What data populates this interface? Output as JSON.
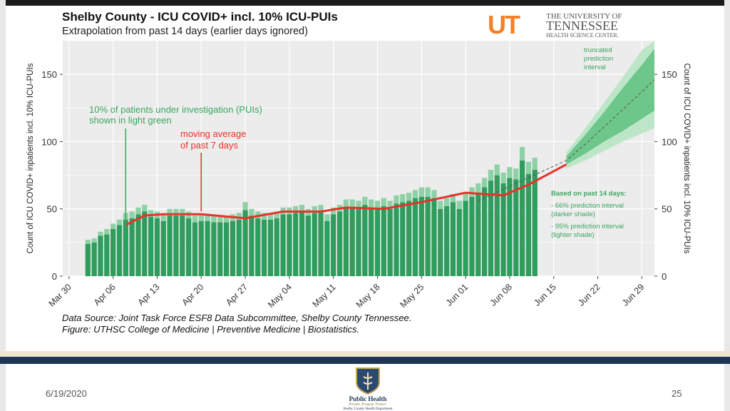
{
  "slide": {
    "title": "Shelby County - ICU COVID+ incl. 10% ICU-PUIs",
    "subtitle": "Extrapolation from past 14 days (earlier days ignored)",
    "source_line1": "Data Source: Joint Task Force ESF8 Data Subcommittee, Shelby County Tennessee.",
    "source_line2": "Figure: UTHSC College of Medicine | Preventive Medicine | Biostatistics.",
    "date": "6/19/2020",
    "page_number": "25"
  },
  "logo": {
    "line1": "THE UNIVERSITY OF",
    "line2": "TENNESSEE",
    "line3": "HEALTH SCIENCE CENTER.",
    "monogram": "UT",
    "color": "#f58025"
  },
  "footer_logo": {
    "line1": "Public Health",
    "line2": "Prevent. Promote. Protect.",
    "line3": "Shelby County Health Department"
  },
  "chart_data": {
    "type": "bar",
    "ylabel": "Count of ICU COVID+ inpatients incl. 10% ICU-PUIs",
    "y2label": "Count of ICU COVID+ inpatients incl. 10% ICU-PUIs",
    "ylim": [
      0,
      175
    ],
    "yticks": [
      0,
      50,
      100,
      150
    ],
    "xlim_dates": [
      "2020-03-29",
      "2020-07-01"
    ],
    "x_ticks": [
      {
        "date": "2020-03-30",
        "label": "Mar 30"
      },
      {
        "date": "2020-04-06",
        "label": "Apr 06"
      },
      {
        "date": "2020-04-13",
        "label": "Apr 13"
      },
      {
        "date": "2020-04-20",
        "label": "Apr 20"
      },
      {
        "date": "2020-04-27",
        "label": "Apr 27"
      },
      {
        "date": "2020-05-04",
        "label": "May 04"
      },
      {
        "date": "2020-05-11",
        "label": "May 11"
      },
      {
        "date": "2020-05-18",
        "label": "May 18"
      },
      {
        "date": "2020-05-25",
        "label": "May 25"
      },
      {
        "date": "2020-06-01",
        "label": "Jun 01"
      },
      {
        "date": "2020-06-08",
        "label": "Jun 08"
      },
      {
        "date": "2020-06-15",
        "label": "Jun 15"
      },
      {
        "date": "2020-06-22",
        "label": "Jun 22"
      },
      {
        "date": "2020-06-29",
        "label": "Jun 29"
      }
    ],
    "grid": true,
    "bars_start_date": "2020-04-02",
    "totals": [
      27,
      28,
      33,
      35,
      39,
      42,
      47,
      48,
      51,
      53,
      49,
      48,
      46,
      50,
      50,
      50,
      48,
      45,
      46,
      46,
      45,
      44,
      44,
      46,
      47,
      55,
      50,
      48,
      47,
      47,
      48,
      51,
      51,
      52,
      53,
      50,
      52,
      53,
      46,
      51,
      53,
      57,
      57,
      56,
      59,
      57,
      56,
      58,
      56,
      60,
      61,
      62,
      64,
      66,
      66,
      64,
      56,
      58,
      61,
      56,
      62,
      66,
      69,
      73,
      79,
      83,
      77,
      81,
      80,
      96,
      85,
      88
    ],
    "pui_values": [
      3,
      3,
      3,
      4,
      4,
      4,
      5,
      5,
      5,
      5,
      5,
      5,
      5,
      5,
      5,
      5,
      5,
      5,
      5,
      5,
      5,
      4,
      4,
      5,
      5,
      6,
      5,
      5,
      5,
      5,
      5,
      5,
      5,
      5,
      5,
      5,
      5,
      5,
      5,
      5,
      5,
      6,
      6,
      6,
      6,
      6,
      6,
      6,
      6,
      6,
      6,
      6,
      6,
      7,
      7,
      6,
      6,
      6,
      6,
      6,
      6,
      7,
      7,
      7,
      8,
      8,
      8,
      8,
      8,
      10,
      9,
      9
    ],
    "moving_average_7d": [
      {
        "date": "2020-04-08",
        "value": 38
      },
      {
        "date": "2020-04-11",
        "value": 45
      },
      {
        "date": "2020-04-14",
        "value": 46
      },
      {
        "date": "2020-04-20",
        "value": 46
      },
      {
        "date": "2020-04-27",
        "value": 43
      },
      {
        "date": "2020-05-03",
        "value": 48
      },
      {
        "date": "2020-05-09",
        "value": 48
      },
      {
        "date": "2020-05-13",
        "value": 51
      },
      {
        "date": "2020-05-19",
        "value": 50
      },
      {
        "date": "2020-05-25",
        "value": 55
      },
      {
        "date": "2020-06-01",
        "value": 62
      },
      {
        "date": "2020-06-07",
        "value": 60
      },
      {
        "date": "2020-06-11",
        "value": 68
      },
      {
        "date": "2020-06-15",
        "value": 78
      },
      {
        "date": "2020-06-17",
        "value": 83
      }
    ],
    "prediction": {
      "dates": [
        "2020-06-17",
        "2020-06-20",
        "2020-06-23",
        "2020-06-26",
        "2020-06-29",
        "2020-07-01"
      ],
      "mean": [
        86,
        98,
        111,
        124,
        137,
        146
      ],
      "pi66": [
        [
          83,
          89
        ],
        [
          91,
          105
        ],
        [
          100,
          122
        ],
        [
          108,
          140
        ],
        [
          117,
          157
        ],
        [
          123,
          169
        ]
      ],
      "pi95": [
        [
          80,
          92
        ],
        [
          86,
          110
        ],
        [
          93,
          129
        ],
        [
          100,
          148
        ],
        [
          106,
          168
        ],
        [
          110,
          175
        ]
      ],
      "mean_dashed_from": "2020-06-03"
    },
    "colors": {
      "bar": "#2e9d5d",
      "pui_bar": "#8fd1a6",
      "moving_average": "#e8322a",
      "pi66": "#5fbf7f",
      "pi95": "#b8e6c4",
      "panel": "#ececec",
      "grid": "#ffffff",
      "annotation_green": "#3aa65e"
    },
    "annotations": {
      "pui_note_line1": "10% of patients under investigation (PUIs)",
      "pui_note_line2": "shown in light green",
      "pui_note_date": "2020-04-08",
      "ma_note_line1": "moving average",
      "ma_note_line2": "of past 7 days",
      "ma_note_date": "2020-04-20",
      "truncated_line1": "truncated",
      "truncated_line2": "prediction",
      "truncated_line3": "interval",
      "based_on": "Based on past 14 days:",
      "pi66_line1": "- 66% prediction interval",
      "pi66_line2": "(darker shade)",
      "pi95_line1": "- 95% prediction interval",
      "pi95_line2": "(lighter shade)"
    }
  }
}
